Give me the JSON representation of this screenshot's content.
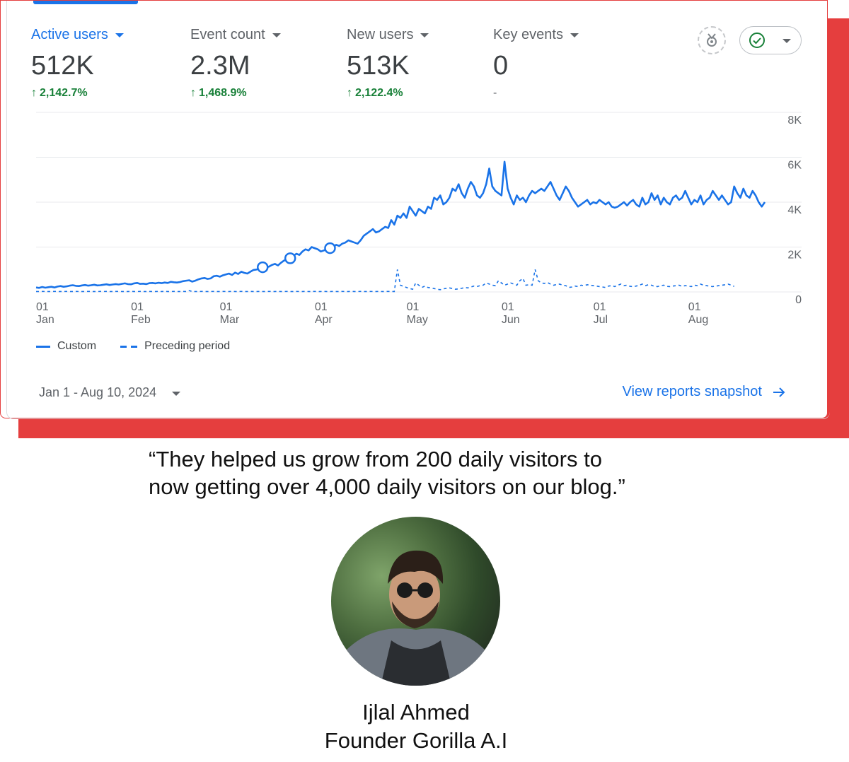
{
  "metrics": [
    {
      "label": "Active users",
      "value": "512K",
      "change": "2,142.7%",
      "active": true
    },
    {
      "label": "Event count",
      "value": "2.3M",
      "change": "1,468.9%"
    },
    {
      "label": "New users",
      "value": "513K",
      "change": "2,122.4%"
    },
    {
      "label": "Key events",
      "value": "0",
      "change": "-"
    }
  ],
  "legend": {
    "custom": "Custom",
    "preceding": "Preceding period"
  },
  "date_range": "Jan 1 - Aug 10, 2024",
  "view_link": "View reports snapshot",
  "quote": {
    "line1": "“They helped us grow from 200 daily visitors to",
    "line2": "now getting over 4,000 daily visitors on our blog.”"
  },
  "person": {
    "name": "Ijlal Ahmed",
    "title": "Founder Gorilla A.I"
  },
  "colors": {
    "accent": "#1a73e8",
    "positive": "#188038",
    "brand_red": "#e53e3e"
  },
  "icons": {
    "insights": "insights-icon",
    "status": "check-circle-icon",
    "link_arrow": "arrow-right-icon"
  },
  "chart_data": {
    "type": "line",
    "ylim": [
      0,
      8000
    ],
    "y_ticks": [
      "8K",
      "6K",
      "4K",
      "2K",
      "0"
    ],
    "y_tick_values": [
      8000,
      6000,
      4000,
      2000,
      0
    ],
    "x_ticks": [
      {
        "day": "01",
        "month": "Jan",
        "index": 0
      },
      {
        "day": "01",
        "month": "Feb",
        "index": 31
      },
      {
        "day": "01",
        "month": "Mar",
        "index": 60
      },
      {
        "day": "01",
        "month": "Apr",
        "index": 91
      },
      {
        "day": "01",
        "month": "May",
        "index": 121
      },
      {
        "day": "01",
        "month": "Jun",
        "index": 152
      },
      {
        "day": "01",
        "month": "Jul",
        "index": 182
      },
      {
        "day": "01",
        "month": "Aug",
        "index": 213
      }
    ],
    "grid": true,
    "legend_position": "bottom-left",
    "series": [
      {
        "name": "Custom",
        "style": "solid",
        "values": [
          200,
          180,
          220,
          190,
          210,
          230,
          200,
          240,
          260,
          230,
          250,
          280,
          300,
          270,
          260,
          290,
          310,
          280,
          300,
          320,
          290,
          300,
          320,
          340,
          310,
          330,
          350,
          330,
          360,
          380,
          350,
          340,
          380,
          400,
          360,
          370,
          350,
          390,
          400,
          380,
          410,
          390,
          420,
          400,
          450,
          430,
          420,
          440,
          480,
          500,
          520,
          460,
          500,
          560,
          600,
          620,
          580,
          600,
          700,
          720,
          680,
          740,
          780,
          820,
          760,
          860,
          800,
          900,
          850,
          820,
          900,
          980,
          1000,
          1050,
          1100,
          1150,
          1120,
          1200,
          1250,
          1180,
          1300,
          1400,
          1450,
          1500,
          1600,
          1700,
          1650,
          1800,
          1900,
          1850,
          2000,
          1950,
          1900,
          1800,
          1850,
          1900,
          1950,
          2000,
          2100,
          2050,
          2150,
          2200,
          2300,
          2250,
          2200,
          2150,
          2300,
          2500,
          2600,
          2700,
          2800,
          2650,
          2700,
          2800,
          2900,
          2850,
          3200,
          3000,
          3400,
          3300,
          3500,
          3300,
          3800,
          3600,
          3400,
          3700,
          3600,
          3500,
          3800,
          3700,
          4200,
          4100,
          4300,
          3900,
          4000,
          4200,
          4600,
          4500,
          4800,
          4400,
          4200,
          4600,
          4900,
          4700,
          4300,
          4200,
          4400,
          4800,
          5500,
          4700,
          4500,
          4400,
          4300,
          5800,
          4600,
          4200,
          3900,
          4300,
          4100,
          4200,
          4000,
          4300,
          4500,
          4400,
          4500,
          4600,
          4500,
          4700,
          4900,
          4600,
          4300,
          4100,
          4400,
          4700,
          4500,
          4200,
          4000,
          3800,
          3900,
          4000,
          4100,
          3900,
          4000,
          3950,
          4100,
          4000,
          3900,
          4000,
          3800,
          3750,
          3800,
          3900,
          4000,
          3850,
          4000,
          4100,
          3900,
          3800,
          4200,
          3900,
          4000,
          4400,
          4100,
          4300,
          3900,
          4200,
          4000,
          3900,
          4200,
          4300,
          4100,
          4200,
          4500,
          4200,
          3900,
          4100,
          4000,
          4300,
          3900,
          4100,
          4200,
          4500,
          4300,
          4100,
          4300,
          4100,
          3900,
          4000,
          4700,
          4400,
          4200,
          4600,
          4300,
          4200,
          4500,
          4300,
          4000,
          3800,
          4000
        ]
      },
      {
        "name": "Preceding period",
        "style": "dashed",
        "values": [
          20,
          20,
          22,
          20,
          18,
          20,
          22,
          20,
          18,
          20,
          22,
          20,
          20,
          21,
          20,
          19,
          20,
          22,
          20,
          20,
          20,
          21,
          20,
          22,
          20,
          20,
          21,
          22,
          20,
          20,
          20,
          22,
          20,
          20,
          21,
          20,
          20,
          22,
          20,
          20,
          21,
          20,
          22,
          20,
          20,
          21,
          20,
          20,
          22,
          20,
          60,
          20,
          20,
          20,
          22,
          20,
          20,
          20,
          21,
          20,
          20,
          22,
          20,
          20,
          21,
          20,
          20,
          22,
          20,
          20,
          21,
          20,
          20,
          22,
          20,
          20,
          21,
          20,
          20,
          22,
          20,
          20,
          21,
          20,
          20,
          22,
          20,
          20,
          21,
          20,
          20,
          22,
          20,
          20,
          21,
          20,
          20,
          22,
          20,
          20,
          21,
          20,
          20,
          22,
          20,
          20,
          21,
          20,
          20,
          22,
          20,
          20,
          21,
          20,
          20,
          22,
          20,
          20,
          1000,
          300,
          250,
          200,
          150,
          120,
          400,
          300,
          200,
          260,
          200,
          180,
          150,
          120,
          100,
          140,
          160,
          180,
          150,
          120,
          140,
          160,
          200,
          180,
          220,
          260,
          240,
          280,
          300,
          400,
          350,
          300,
          280,
          500,
          400,
          300,
          350,
          400,
          350,
          300,
          500,
          600,
          300,
          320,
          300,
          1000,
          500,
          400,
          380,
          420,
          350,
          300,
          330,
          350,
          300,
          280,
          200,
          220,
          260,
          240,
          300,
          280,
          320,
          300,
          280,
          260,
          240,
          220,
          200,
          260,
          280,
          240,
          300,
          350,
          280,
          300,
          250,
          240,
          260,
          300,
          350,
          280,
          320,
          300,
          250,
          240,
          280,
          300,
          250,
          240,
          260,
          280,
          300,
          250,
          280,
          260,
          240,
          300,
          280,
          350,
          300,
          280,
          250,
          240,
          260,
          280,
          300,
          320,
          350,
          300,
          250
        ]
      }
    ]
  }
}
